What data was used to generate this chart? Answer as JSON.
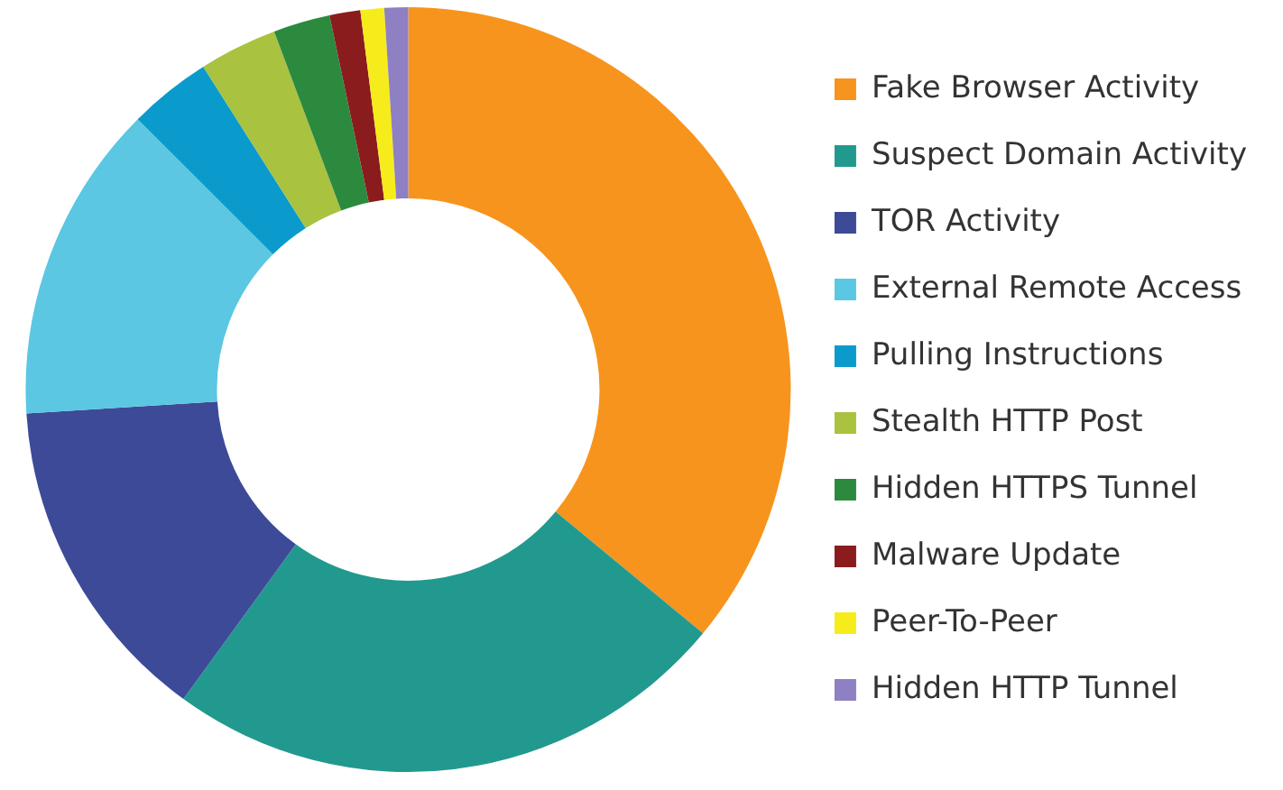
{
  "chart_data": {
    "type": "donut",
    "categories": [
      "Fake Browser Activity",
      "Suspect Domain Activity",
      "TOR Activity",
      "External Remote Access",
      "Pulling Instructions",
      "Stealth HTTP Post",
      "Hidden HTTPS Tunnel",
      "Malware Update",
      "Peer-To-Peer",
      "Hidden HTTP Tunnel"
    ],
    "values": [
      36,
      24,
      14,
      13.5,
      3.5,
      3.3,
      2.4,
      1.3,
      1,
      1
    ],
    "colors": [
      "#f7941d",
      "#22998f",
      "#3c4a98",
      "#5bc7e2",
      "#0a9bcc",
      "#a9c23f",
      "#2c8a3f",
      "#8a1c1e",
      "#f7ec1b",
      "#8e80c2"
    ],
    "legend": "right"
  }
}
